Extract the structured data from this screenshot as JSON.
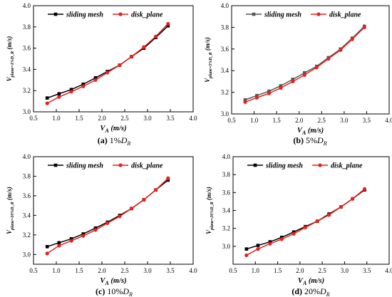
{
  "colors": {
    "series_palette": [
      [
        "#000000",
        "#e8201f"
      ],
      [
        "#555555",
        "#e8201f"
      ],
      [
        "#000000",
        "#e8201f"
      ],
      [
        "#000000",
        "#e8201f"
      ]
    ]
  },
  "chart_data": [
    {
      "type": "line",
      "caption": {
        "label": "(a)",
        "text": " 1%D",
        "subscript": "R"
      },
      "xlabel": "V_A (m/s)",
      "ylabel": "V_plane=1%D_R (m/s)",
      "xlim": [
        0.5,
        4.0
      ],
      "ylim": [
        3.0,
        4.0
      ],
      "xticks": [
        "0.5",
        "1.0",
        "1.5",
        "2.0",
        "2.5",
        "3.0",
        "3.5",
        "4.0"
      ],
      "yticks": [
        "3.0",
        "3.2",
        "3.4",
        "3.6",
        "3.8",
        "4.0"
      ],
      "legend_position": "top",
      "x": [
        0.8,
        1.06,
        1.33,
        1.59,
        1.86,
        2.12,
        2.39,
        2.65,
        2.92,
        3.18,
        3.45
      ],
      "series": [
        {
          "name": "sliding mesh",
          "marker": "square",
          "values": [
            3.13,
            3.17,
            3.21,
            3.26,
            3.32,
            3.38,
            3.44,
            3.52,
            3.6,
            3.7,
            3.81
          ]
        },
        {
          "name": "disk_plane",
          "marker": "circle",
          "values": [
            3.08,
            3.14,
            3.19,
            3.24,
            3.3,
            3.37,
            3.44,
            3.52,
            3.61,
            3.71,
            3.83
          ]
        }
      ]
    },
    {
      "type": "line",
      "caption": {
        "label": "(b)",
        "text": " 5%D",
        "subscript": "R"
      },
      "xlabel": "V_A (m/s)",
      "ylabel": "V_plane=5%D_R (m/s)",
      "xlim": [
        0.5,
        4.0
      ],
      "ylim": [
        3.0,
        4.0
      ],
      "xticks": [
        "0.5",
        "1.0",
        "1.5",
        "2.0",
        "2.5",
        "3.0",
        "3.5",
        "4.0"
      ],
      "yticks": [
        "3.0",
        "3.2",
        "3.4",
        "3.6",
        "3.8",
        "4.0"
      ],
      "legend_position": "top",
      "x": [
        0.8,
        1.06,
        1.33,
        1.59,
        1.86,
        2.12,
        2.39,
        2.65,
        2.92,
        3.18,
        3.45
      ],
      "series": [
        {
          "name": "sliding mesh",
          "marker": "square",
          "values": [
            3.13,
            3.17,
            3.21,
            3.26,
            3.32,
            3.38,
            3.44,
            3.52,
            3.6,
            3.7,
            3.81
          ]
        },
        {
          "name": "disk_plane",
          "marker": "circle",
          "values": [
            3.11,
            3.15,
            3.19,
            3.24,
            3.3,
            3.36,
            3.43,
            3.51,
            3.59,
            3.69,
            3.8
          ]
        }
      ]
    },
    {
      "type": "line",
      "caption": {
        "label": "(c)",
        "text": " 10%D",
        "subscript": "R"
      },
      "xlabel": "V_A (m/s)",
      "ylabel": "V_plane=10%D_R (m/s)",
      "xlim": [
        0.5,
        4.0
      ],
      "ylim": [
        2.9,
        4.0
      ],
      "xticks": [
        "0.5",
        "1.0",
        "1.5",
        "2.0",
        "2.5",
        "3.0",
        "3.5",
        "4.0"
      ],
      "yticks": [
        "3.0",
        "3.2",
        "3.4",
        "3.6",
        "3.8",
        "4.0"
      ],
      "legend_position": "top",
      "x": [
        0.8,
        1.06,
        1.33,
        1.59,
        1.86,
        2.12,
        2.39,
        2.65,
        2.92,
        3.18,
        3.45
      ],
      "series": [
        {
          "name": "sliding mesh",
          "marker": "square",
          "values": [
            3.08,
            3.12,
            3.16,
            3.21,
            3.27,
            3.33,
            3.4,
            3.47,
            3.56,
            3.66,
            3.76
          ]
        },
        {
          "name": "disk_plane",
          "marker": "circle",
          "values": [
            3.01,
            3.09,
            3.14,
            3.19,
            3.25,
            3.32,
            3.39,
            3.47,
            3.56,
            3.66,
            3.78
          ]
        }
      ]
    },
    {
      "type": "line",
      "caption": {
        "label": "(d)",
        "text": " 20%D",
        "subscript": "R"
      },
      "xlabel": "V_A (m/s)",
      "ylabel": "V_plane=20%D_R (m/s)",
      "xlim": [
        0.5,
        4.0
      ],
      "ylim": [
        2.8,
        4.0
      ],
      "xticks": [
        "0.5",
        "1.0",
        "1.5",
        "2.0",
        "2.5",
        "3.0",
        "3.5",
        "4.0"
      ],
      "yticks": [
        "3.0",
        "3.2",
        "3.4",
        "3.6",
        "3.8",
        "4.0"
      ],
      "legend_position": "top",
      "x": [
        0.8,
        1.06,
        1.33,
        1.59,
        1.86,
        2.12,
        2.39,
        2.65,
        2.92,
        3.18,
        3.45
      ],
      "series": [
        {
          "name": "sliding mesh",
          "marker": "square",
          "values": [
            2.97,
            3.01,
            3.05,
            3.1,
            3.16,
            3.22,
            3.28,
            3.36,
            3.44,
            3.53,
            3.63
          ]
        },
        {
          "name": "disk_plane",
          "marker": "circle",
          "values": [
            2.9,
            2.97,
            3.03,
            3.08,
            3.14,
            3.21,
            3.28,
            3.35,
            3.44,
            3.53,
            3.64
          ]
        }
      ]
    }
  ]
}
